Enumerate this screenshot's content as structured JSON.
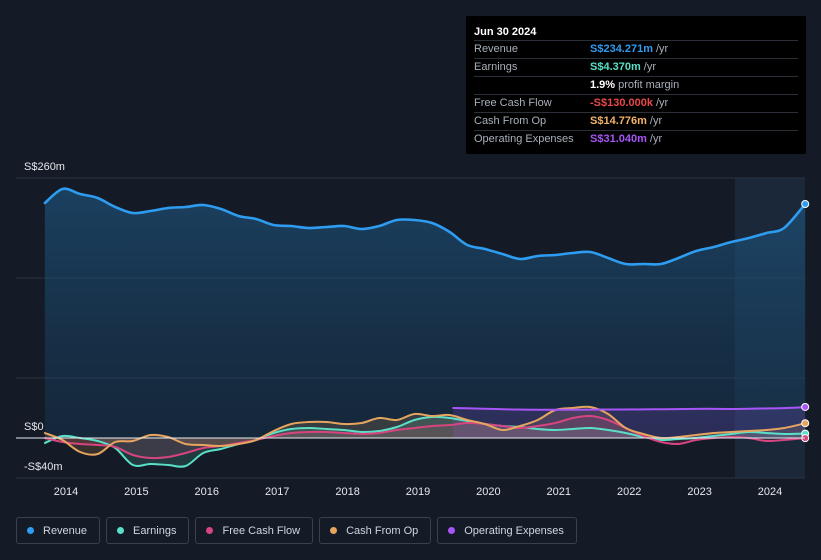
{
  "tooltip": {
    "date": "Jun 30 2024",
    "rows": [
      {
        "label": "Revenue",
        "value": "S$234.271m",
        "unit": "/yr",
        "color": "#2e9cf0"
      },
      {
        "label": "Earnings",
        "value": "S$4.370m",
        "unit": "/yr",
        "color": "#5be0c8"
      },
      {
        "label": "",
        "value": "1.9%",
        "unit": "profit margin",
        "color": "#ffffff"
      },
      {
        "label": "Free Cash Flow",
        "value": "-S$130.000k",
        "unit": "/yr",
        "color": "#e8484a"
      },
      {
        "label": "Cash From Op",
        "value": "S$14.776m",
        "unit": "/yr",
        "color": "#f2b36a"
      },
      {
        "label": "Operating Expenses",
        "value": "S$31.040m",
        "unit": "/yr",
        "color": "#a855f7"
      }
    ]
  },
  "legend": [
    {
      "label": "Revenue",
      "color": "#2e9cf0"
    },
    {
      "label": "Earnings",
      "color": "#5be0c8"
    },
    {
      "label": "Free Cash Flow",
      "color": "#d6457f"
    },
    {
      "label": "Cash From Op",
      "color": "#e6a55e"
    },
    {
      "label": "Operating Expenses",
      "color": "#a855f7"
    }
  ],
  "chart_data": {
    "type": "area",
    "title": "",
    "y_labels": [
      "S$260m",
      "S$0",
      "-S$40m"
    ],
    "ylim": [
      -40,
      260
    ],
    "xlim": [
      2013.7,
      2024.5
    ],
    "x_ticks": [
      "2014",
      "2015",
      "2016",
      "2017",
      "2018",
      "2019",
      "2020",
      "2021",
      "2022",
      "2023",
      "2024"
    ],
    "highlight_from": 2023.5,
    "series": [
      {
        "name": "Revenue",
        "color": "#2e9cf0",
        "x": [
          2013.7,
          2013.95,
          2014.2,
          2014.45,
          2014.7,
          2014.95,
          2015.2,
          2015.45,
          2015.7,
          2015.95,
          2016.2,
          2016.45,
          2016.7,
          2016.95,
          2017.2,
          2017.45,
          2017.7,
          2017.95,
          2018.2,
          2018.45,
          2018.7,
          2018.95,
          2019.2,
          2019.45,
          2019.7,
          2019.95,
          2020.2,
          2020.45,
          2020.7,
          2020.95,
          2021.2,
          2021.45,
          2021.7,
          2021.95,
          2022.2,
          2022.45,
          2022.7,
          2022.95,
          2023.2,
          2023.45,
          2023.7,
          2023.95,
          2024.2,
          2024.5
        ],
        "values": [
          235,
          249,
          244,
          240,
          231,
          225,
          227,
          230,
          231,
          233,
          229,
          222,
          219,
          213,
          212,
          210,
          211,
          212,
          209,
          212,
          218,
          218,
          215,
          206,
          193,
          189,
          184,
          179,
          182,
          183,
          185,
          186,
          180,
          174,
          174,
          174,
          180,
          187,
          191,
          196,
          200,
          205,
          210,
          234
        ]
      },
      {
        "name": "Earnings",
        "color": "#5be0c8",
        "x": [
          2013.7,
          2013.95,
          2014.2,
          2014.45,
          2014.7,
          2014.95,
          2015.2,
          2015.45,
          2015.7,
          2015.95,
          2016.2,
          2016.45,
          2016.7,
          2016.95,
          2017.2,
          2017.45,
          2017.7,
          2017.95,
          2018.2,
          2018.45,
          2018.7,
          2018.95,
          2019.2,
          2019.45,
          2019.7,
          2019.95,
          2020.2,
          2020.45,
          2020.7,
          2020.95,
          2021.2,
          2021.45,
          2021.7,
          2021.95,
          2022.2,
          2022.45,
          2022.7,
          2022.95,
          2023.2,
          2023.45,
          2023.7,
          2023.95,
          2024.2,
          2024.5
        ],
        "values": [
          -5,
          2,
          0,
          -3,
          -10,
          -27,
          -26,
          -27,
          -28,
          -15,
          -11,
          -6,
          -2,
          5,
          9,
          10,
          9,
          8,
          6,
          7,
          11,
          18,
          21,
          20,
          17,
          14,
          12,
          11,
          9,
          8,
          9,
          10,
          8,
          5,
          1,
          -2,
          -1,
          0,
          2,
          4,
          6,
          5,
          4,
          4.37
        ]
      },
      {
        "name": "Free Cash Flow",
        "color": "#d6457f",
        "x": [
          2013.7,
          2013.95,
          2014.2,
          2014.45,
          2014.7,
          2014.95,
          2015.2,
          2015.45,
          2015.7,
          2015.95,
          2016.2,
          2016.45,
          2016.7,
          2016.95,
          2017.2,
          2017.45,
          2017.7,
          2017.95,
          2018.2,
          2018.45,
          2018.7,
          2018.95,
          2019.2,
          2019.45,
          2019.7,
          2019.95,
          2020.2,
          2020.45,
          2020.7,
          2020.95,
          2021.2,
          2021.45,
          2021.7,
          2021.95,
          2022.2,
          2022.45,
          2022.7,
          2022.95,
          2023.2,
          2023.45,
          2023.7,
          2023.95,
          2024.2,
          2024.5
        ],
        "values": [
          0,
          -4,
          -6,
          -7,
          -9,
          -17,
          -20,
          -19,
          -15,
          -10,
          -8,
          -5,
          -2,
          2,
          5,
          6,
          6,
          5,
          4,
          5,
          8,
          10,
          12,
          13,
          15,
          14,
          12,
          10,
          12,
          15,
          20,
          22,
          18,
          10,
          2,
          -4,
          -6,
          -2,
          0,
          1,
          0,
          -3,
          -2,
          -0.13
        ]
      },
      {
        "name": "Cash From Op",
        "color": "#e6a55e",
        "x": [
          2013.7,
          2013.95,
          2014.2,
          2014.45,
          2014.7,
          2014.95,
          2015.2,
          2015.45,
          2015.7,
          2015.95,
          2016.2,
          2016.45,
          2016.7,
          2016.95,
          2017.2,
          2017.45,
          2017.7,
          2017.95,
          2018.2,
          2018.45,
          2018.7,
          2018.95,
          2019.2,
          2019.45,
          2019.7,
          2019.95,
          2020.2,
          2020.45,
          2020.7,
          2020.95,
          2021.2,
          2021.45,
          2021.7,
          2021.95,
          2022.2,
          2022.45,
          2022.7,
          2022.95,
          2023.2,
          2023.45,
          2023.7,
          2023.95,
          2024.2,
          2024.5
        ],
        "values": [
          5,
          -2,
          -14,
          -16,
          -4,
          -3,
          3,
          1,
          -6,
          -7,
          -8,
          -6,
          -2,
          7,
          14,
          16,
          16,
          14,
          15,
          20,
          18,
          24,
          22,
          23,
          18,
          14,
          8,
          12,
          18,
          28,
          30,
          31,
          24,
          10,
          4,
          0,
          1,
          3,
          5,
          6,
          7,
          8,
          10,
          14.776
        ]
      },
      {
        "name": "Operating Expenses",
        "color": "#a855f7",
        "x": [
          2019.5,
          2019.8,
          2020.1,
          2020.4,
          2020.7,
          2021.0,
          2021.3,
          2021.6,
          2021.9,
          2022.2,
          2022.5,
          2022.8,
          2023.1,
          2023.4,
          2023.7,
          2024.0,
          2024.3,
          2024.5
        ],
        "values": [
          30,
          29.5,
          29,
          28.5,
          28.3,
          28.3,
          28.3,
          28.5,
          28.5,
          28.6,
          28.8,
          29,
          29.2,
          29,
          29.3,
          29.6,
          30.2,
          31.04
        ]
      }
    ]
  }
}
